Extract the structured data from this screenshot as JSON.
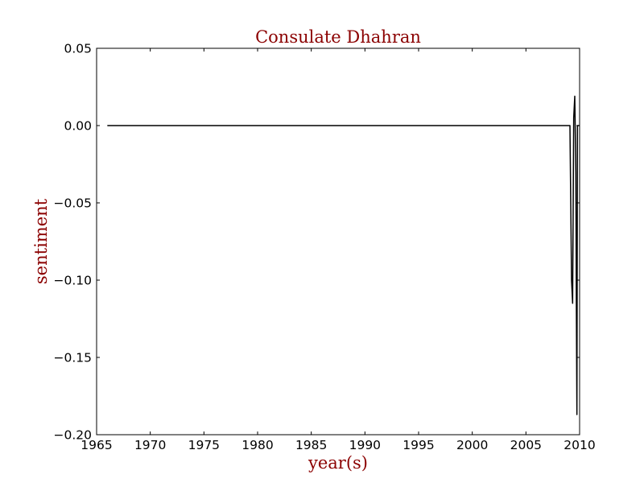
{
  "chart_data": {
    "type": "line",
    "title": "Consulate Dhahran",
    "xlabel": "year(s)",
    "ylabel": "sentiment",
    "xlim": [
      1965,
      2010
    ],
    "ylim": [
      -0.2,
      0.05
    ],
    "grid": false,
    "x_ticks": [
      1965,
      1970,
      1975,
      1980,
      1985,
      1990,
      1995,
      2000,
      2005,
      2010
    ],
    "y_ticks": [
      0.05,
      0.0,
      -0.05,
      -0.1,
      -0.15,
      -0.2
    ],
    "x_tick_labels": [
      "1965",
      "1970",
      "1975",
      "1980",
      "1985",
      "1990",
      "1995",
      "2000",
      "2005",
      "2010"
    ],
    "y_tick_labels": [
      "0.05",
      "0.00",
      "−0.05",
      "−0.10",
      "−0.15",
      "−0.20"
    ],
    "series": [
      {
        "color": "#000000",
        "x": [
          1966.0,
          2009.1,
          2009.25,
          2009.35,
          2009.45,
          2009.55,
          2009.65,
          2009.7,
          2009.75,
          2009.8,
          2009.85,
          2009.95
        ],
        "y": [
          0.0,
          0.0,
          -0.1,
          -0.115,
          0.005,
          0.019,
          -0.03,
          -0.12,
          -0.187,
          0.0,
          0.0,
          0.0
        ]
      }
    ]
  },
  "colors": {
    "title": "#8b0000",
    "axis_label": "#8b0000",
    "line": "#000000",
    "axes": "#000000",
    "background": "#ffffff"
  }
}
